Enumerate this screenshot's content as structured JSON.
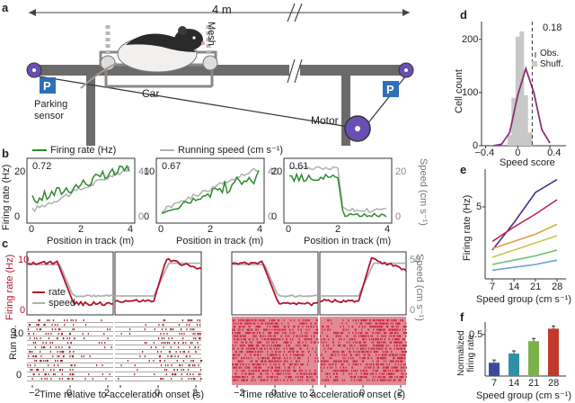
{
  "panel_labels": {
    "a": "a",
    "b": "b",
    "c": "c",
    "d": "d",
    "e": "e",
    "f": "f"
  },
  "a": {
    "distance": "4 m",
    "labels": {
      "mesh": "Mesh",
      "car": "Car",
      "parking_sensor": "Parking\nsensor",
      "motor": "Motor",
      "p_left": "P",
      "p_right": "P"
    },
    "colors": {
      "rail": "#6b6b6b",
      "wheel": "#6a4fb3",
      "sensor": "#2e6fb5",
      "mesh": "#b8b8b8"
    }
  },
  "b": {
    "legend": {
      "firing": "Firing rate (Hz)",
      "speed": "Running speed (cm s⁻¹)"
    },
    "ylabel_left": "Firing rate (Hz)",
    "ylabel_right": "Speed (cm s⁻¹)",
    "xlabel": "Position in track (m)",
    "colors": {
      "firing": "#2e8b2e",
      "speed": "#b0b0b0"
    },
    "plots": [
      {
        "r": "0.72",
        "yticks_left": [
          "0",
          "20"
        ],
        "yticks_right": [
          "0",
          "40"
        ],
        "xticks": [
          "0",
          "2",
          "4"
        ]
      },
      {
        "r": "0.67",
        "yticks_left": [
          "0",
          "10"
        ],
        "yticks_right": [
          "0",
          "40"
        ],
        "xticks": [
          "0",
          "2",
          "4"
        ]
      },
      {
        "r": "0.61",
        "yticks_left": [
          "0",
          "20"
        ],
        "yticks_right": [
          "0",
          "20"
        ],
        "xticks": [
          "0",
          "2",
          "4"
        ]
      }
    ]
  },
  "c": {
    "ylabel_left": "Firing rate (Hz)",
    "ylabel_right": "Speed (cm s⁻¹)",
    "ylabel_raster": "Run no.",
    "xlabel": "Time relative to acceleration onset (s)",
    "legend": {
      "rate": "rate",
      "speed": "speed"
    },
    "colors": {
      "rate": "#b3142c",
      "speed": "#b0b0b0"
    },
    "yticks_left": [
      "0",
      "10"
    ],
    "yticks_right": [
      "0",
      "50"
    ],
    "raster_ticks": [
      "10",
      "0"
    ],
    "xticks": [
      "−2",
      "0",
      "2"
    ]
  },
  "d": {
    "ylabel": "Cell count",
    "xlabel": "Speed score",
    "yticks": [
      "0",
      "100",
      "200"
    ],
    "xticks": [
      "−0.4",
      "0",
      "0.4"
    ],
    "threshold": "0.18",
    "legend": {
      "obs": "Obs.",
      "shuff": "Shuff."
    }
  },
  "e": {
    "ylabel": "Firing rate (Hz)",
    "xlabel": "Speed group (cm s⁻¹)",
    "xticks": [
      "7",
      "14",
      "21",
      "28"
    ],
    "yticks": [
      "5"
    ]
  },
  "f": {
    "ylabel": "Normalized\nfiring rate",
    "xlabel": "Speed group (cm s⁻¹)",
    "xticks": [
      "7",
      "14",
      "21",
      "28"
    ],
    "yticks": [
      "0.5"
    ]
  },
  "chart_data": [
    {
      "panel": "d",
      "type": "bar",
      "xlabel": "Speed score",
      "ylabel": "Cell count",
      "xlim": [
        -0.45,
        0.6
      ],
      "ylim": [
        0,
        230
      ],
      "series": [
        {
          "name": "Shuff.",
          "x": [
            -0.1,
            -0.05,
            0.0,
            0.05,
            0.1,
            0.15
          ],
          "values": [
            20,
            90,
            205,
            215,
            95,
            25
          ]
        },
        {
          "name": "Obs.",
          "x": [
            -0.3,
            -0.2,
            -0.1,
            0.0,
            0.05,
            0.1,
            0.2,
            0.3,
            0.4
          ],
          "values": [
            0,
            3,
            25,
            95,
            120,
            145,
            100,
            30,
            5
          ]
        }
      ]
    },
    {
      "panel": "e",
      "type": "line",
      "xlabel": "Speed group (cm s⁻¹)",
      "ylabel": "Firing rate (Hz)",
      "categories": [
        "7",
        "14",
        "21",
        "28"
      ],
      "series": [
        {
          "values": [
            2.0,
            3.9,
            6.0,
            6.9
          ]
        },
        {
          "values": [
            2.6,
            3.6,
            4.5,
            5.5
          ]
        },
        {
          "values": [
            2.1,
            2.6,
            3.1,
            3.8
          ]
        },
        {
          "values": [
            1.5,
            2.0,
            2.5,
            3.0
          ]
        },
        {
          "values": [
            1.0,
            1.3,
            1.6,
            2.0
          ]
        },
        {
          "values": [
            0.6,
            0.8,
            1.0,
            1.3
          ]
        }
      ]
    },
    {
      "panel": "f",
      "type": "bar",
      "xlabel": "Speed group (cm s⁻¹)",
      "ylabel": "Normalized firing rate",
      "categories": [
        "7",
        "14",
        "21",
        "28"
      ],
      "values": [
        0.16,
        0.27,
        0.42,
        0.57
      ],
      "ylim": [
        0,
        0.65
      ],
      "colors": [
        "#3b4aa0",
        "#2f8fa8",
        "#7ab24a",
        "#c0392b"
      ]
    }
  ]
}
